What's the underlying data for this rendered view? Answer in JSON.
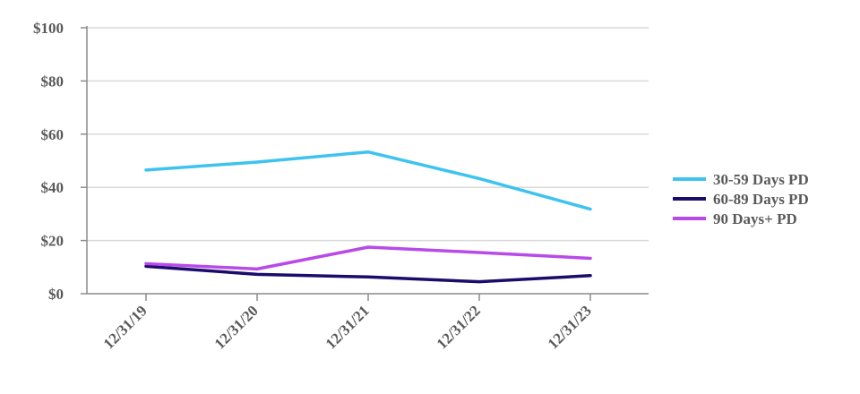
{
  "chart_data": {
    "type": "line",
    "categories": [
      "12/31/19",
      "12/31/20",
      "12/31/21",
      "12/31/22",
      "12/31/23"
    ],
    "series": [
      {
        "name": "30-59 Days PD",
        "values": [
          46.5,
          49.5,
          53.3,
          43.3,
          31.8
        ],
        "color": "#3ec3ee"
      },
      {
        "name": "60-89 Days PD",
        "values": [
          10.3,
          7.3,
          6.3,
          4.5,
          6.8
        ],
        "color": "#1d0b6b"
      },
      {
        "name": "90 Days+ PD",
        "values": [
          11.3,
          9.3,
          17.5,
          15.5,
          13.3
        ],
        "color": "#b84ae8"
      }
    ],
    "ylim": [
      0,
      100
    ],
    "yticks": [
      0,
      20,
      40,
      60,
      80,
      100
    ],
    "ytick_labels": [
      "$0",
      "$20",
      "$40",
      "$60",
      "$80",
      "$100"
    ],
    "grid": true,
    "legend_position": "right"
  }
}
